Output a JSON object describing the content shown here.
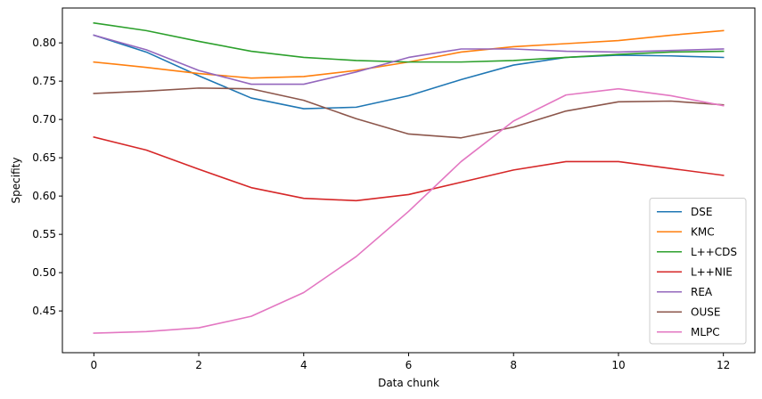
{
  "chart_data": {
    "type": "line",
    "xlabel": "Data chunk",
    "ylabel": "Specifity",
    "xlim": [
      -0.6,
      12.6
    ],
    "ylim": [
      0.3955,
      0.8455
    ],
    "xticks": [
      0,
      2,
      4,
      6,
      8,
      10,
      12
    ],
    "yticks": [
      0.45,
      0.5,
      0.55,
      0.6,
      0.65,
      0.7,
      0.75,
      0.8
    ],
    "ytick_labels": [
      "0.45",
      "0.50",
      "0.55",
      "0.60",
      "0.65",
      "0.70",
      "0.75",
      "0.80"
    ],
    "grid": false,
    "legend_position": "lower-right",
    "x": [
      0,
      1,
      2,
      3,
      4,
      5,
      6,
      7,
      8,
      9,
      10,
      11,
      12
    ],
    "series": [
      {
        "name": "DSE",
        "color": "#1f77b4",
        "values": [
          0.81,
          0.788,
          0.757,
          0.728,
          0.714,
          0.716,
          0.731,
          0.752,
          0.771,
          0.781,
          0.784,
          0.783,
          0.781
        ]
      },
      {
        "name": "KMC",
        "color": "#ff7f0e",
        "values": [
          0.775,
          0.768,
          0.76,
          0.754,
          0.756,
          0.764,
          0.775,
          0.788,
          0.795,
          0.799,
          0.803,
          0.81,
          0.816
        ]
      },
      {
        "name": "L++CDS",
        "color": "#2ca02c",
        "values": [
          0.826,
          0.816,
          0.802,
          0.789,
          0.781,
          0.777,
          0.775,
          0.775,
          0.777,
          0.781,
          0.785,
          0.788,
          0.789
        ]
      },
      {
        "name": "L++NIE",
        "color": "#d62728",
        "values": [
          0.677,
          0.66,
          0.635,
          0.611,
          0.597,
          0.594,
          0.602,
          0.618,
          0.634,
          0.645,
          0.645,
          0.636,
          0.627
        ]
      },
      {
        "name": "REA",
        "color": "#9467bd",
        "values": [
          0.81,
          0.791,
          0.764,
          0.746,
          0.746,
          0.762,
          0.781,
          0.792,
          0.792,
          0.789,
          0.788,
          0.79,
          0.792
        ]
      },
      {
        "name": "OUSE",
        "color": "#8c564b",
        "values": [
          0.734,
          0.737,
          0.741,
          0.74,
          0.725,
          0.701,
          0.681,
          0.676,
          0.69,
          0.711,
          0.723,
          0.724,
          0.719
        ]
      },
      {
        "name": "MLPC",
        "color": "#e377c2",
        "values": [
          0.421,
          0.423,
          0.428,
          0.443,
          0.474,
          0.521,
          0.58,
          0.645,
          0.698,
          0.732,
          0.74,
          0.731,
          0.718
        ]
      }
    ]
  }
}
